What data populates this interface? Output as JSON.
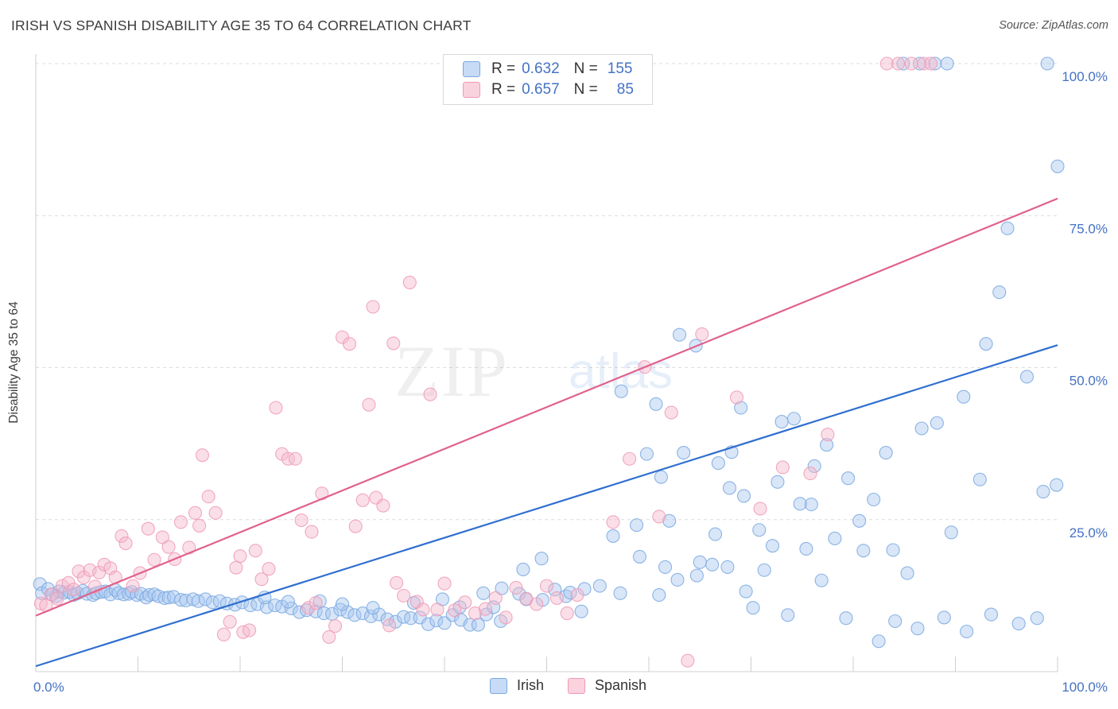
{
  "header": {
    "title": "IRISH VS SPANISH DISABILITY AGE 35 TO 64 CORRELATION CHART",
    "source": "Source: ZipAtlas.com"
  },
  "watermark": {
    "zip": "ZIP",
    "atlas": "atlas"
  },
  "legend_top": {
    "rows": [
      {
        "r_label": "R =",
        "r_value": "0.632",
        "n_label": "N =",
        "n_value": "155",
        "color": "#a8c8f0"
      },
      {
        "r_label": "R =",
        "r_value": "0.657",
        "n_label": "N =",
        "n_value": "85",
        "color": "#f5b8cb"
      }
    ]
  },
  "legend_bottom": {
    "irish": "Irish",
    "spanish": "Spanish"
  },
  "chart_data": {
    "type": "scatter",
    "ylabel": "Disability Age 35 to 64",
    "xlim": [
      0,
      100
    ],
    "ylim": [
      0,
      100
    ],
    "x_tick_labels": [
      "0.0%",
      "100.0%"
    ],
    "y_tick_labels": [
      "100.0%",
      "75.0%",
      "50.0%",
      "25.0%"
    ],
    "y_ticks": [
      100,
      75,
      50,
      25
    ],
    "grid": true,
    "colors": {
      "irish": "#7aa8e0",
      "irish_line": "#2f6fd0",
      "spanish": "#f09ab5",
      "spanish_line": "#e0628c",
      "tick_text": "#4472c4"
    },
    "series": [
      {
        "name": "Irish",
        "trend": [
          [
            0,
            0.9
          ],
          [
            100,
            53.7
          ]
        ],
        "points": [
          [
            0.4,
            14.4
          ],
          [
            0.6,
            12.9
          ],
          [
            1.2,
            13.6
          ],
          [
            1.6,
            12.7
          ],
          [
            2.0,
            12.4
          ],
          [
            2.3,
            13.2
          ],
          [
            2.8,
            13.0
          ],
          [
            3.3,
            13.1
          ],
          [
            3.7,
            12.6
          ],
          [
            4.1,
            12.9
          ],
          [
            4.6,
            13.3
          ],
          [
            5.0,
            12.8
          ],
          [
            5.6,
            12.6
          ],
          [
            5.9,
            12.9
          ],
          [
            6.4,
            13.1
          ],
          [
            6.8,
            13.2
          ],
          [
            7.3,
            12.7
          ],
          [
            7.8,
            13.4
          ],
          [
            8.1,
            12.9
          ],
          [
            8.6,
            12.7
          ],
          [
            9.1,
            12.8
          ],
          [
            9.4,
            13.1
          ],
          [
            9.9,
            12.6
          ],
          [
            10.3,
            12.8
          ],
          [
            10.8,
            12.2
          ],
          [
            11.1,
            12.6
          ],
          [
            11.6,
            12.7
          ],
          [
            12.0,
            12.4
          ],
          [
            12.6,
            12.1
          ],
          [
            13.0,
            12.2
          ],
          [
            13.5,
            12.3
          ],
          [
            14.2,
            11.8
          ],
          [
            14.7,
            11.7
          ],
          [
            15.4,
            11.9
          ],
          [
            15.9,
            11.6
          ],
          [
            16.6,
            11.9
          ],
          [
            17.3,
            11.4
          ],
          [
            18.0,
            11.6
          ],
          [
            18.7,
            11.2
          ],
          [
            19.5,
            11.0
          ],
          [
            20.2,
            11.4
          ],
          [
            21.0,
            10.9
          ],
          [
            21.7,
            11.1
          ],
          [
            22.6,
            10.6
          ],
          [
            23.4,
            10.9
          ],
          [
            24.1,
            10.7
          ],
          [
            25.0,
            10.4
          ],
          [
            25.8,
            9.8
          ],
          [
            26.5,
            10.1
          ],
          [
            27.4,
            9.9
          ],
          [
            28.2,
            9.6
          ],
          [
            29.0,
            9.5
          ],
          [
            29.8,
            10.2
          ],
          [
            30.5,
            9.8
          ],
          [
            31.2,
            9.3
          ],
          [
            32.0,
            9.6
          ],
          [
            32.8,
            9.1
          ],
          [
            33.6,
            9.4
          ],
          [
            34.4,
            8.6
          ],
          [
            35.2,
            8.2
          ],
          [
            36.0,
            9.0
          ],
          [
            36.7,
            8.8
          ],
          [
            37.6,
            8.9
          ],
          [
            38.4,
            7.8
          ],
          [
            39.2,
            8.4
          ],
          [
            40.0,
            8.0
          ],
          [
            40.8,
            9.3
          ],
          [
            41.6,
            8.5
          ],
          [
            42.5,
            7.7
          ],
          [
            43.3,
            7.7
          ],
          [
            44.1,
            9.4
          ],
          [
            44.8,
            10.6
          ],
          [
            45.5,
            8.3
          ],
          [
            22.4,
            12.2
          ],
          [
            24.7,
            11.5
          ],
          [
            27.8,
            11.6
          ],
          [
            30.0,
            11.1
          ],
          [
            33.0,
            10.5
          ],
          [
            37.0,
            11.3
          ],
          [
            39.8,
            11.9
          ],
          [
            41.5,
            10.6
          ],
          [
            43.8,
            12.9
          ],
          [
            45.6,
            13.7
          ],
          [
            47.3,
            12.8
          ],
          [
            48.0,
            11.9
          ],
          [
            49.6,
            11.8
          ],
          [
            51.9,
            12.4
          ],
          [
            53.7,
            13.6
          ],
          [
            55.2,
            14.1
          ],
          [
            57.2,
            12.9
          ],
          [
            59.1,
            18.9
          ],
          [
            61.0,
            12.6
          ],
          [
            62.8,
            15.1
          ],
          [
            64.7,
            15.8
          ],
          [
            66.2,
            17.6
          ],
          [
            67.7,
            17.2
          ],
          [
            69.5,
            13.2
          ],
          [
            70.2,
            10.5
          ],
          [
            72.1,
            20.7
          ],
          [
            73.6,
            9.3
          ],
          [
            75.4,
            20.2
          ],
          [
            76.9,
            15.0
          ],
          [
            79.3,
            8.8
          ],
          [
            81.0,
            19.9
          ],
          [
            82.5,
            5.0
          ],
          [
            84.1,
            8.3
          ],
          [
            86.3,
            7.1
          ],
          [
            88.9,
            8.9
          ],
          [
            91.1,
            6.6
          ],
          [
            93.5,
            9.4
          ],
          [
            96.2,
            7.9
          ],
          [
            98.0,
            8.8
          ],
          [
            47.7,
            16.8
          ],
          [
            49.5,
            18.6
          ],
          [
            50.8,
            13.5
          ],
          [
            52.3,
            13.0
          ],
          [
            53.4,
            9.9
          ],
          [
            56.5,
            22.3
          ],
          [
            58.8,
            24.1
          ],
          [
            61.2,
            32.0
          ],
          [
            62.0,
            24.8
          ],
          [
            63.4,
            36.0
          ],
          [
            65.0,
            18.0
          ],
          [
            66.5,
            22.6
          ],
          [
            68.1,
            36.1
          ],
          [
            69.0,
            43.4
          ],
          [
            70.8,
            23.3
          ],
          [
            72.6,
            31.2
          ],
          [
            74.2,
            41.6
          ],
          [
            75.9,
            27.5
          ],
          [
            77.4,
            37.3
          ],
          [
            78.2,
            21.9
          ],
          [
            80.6,
            24.8
          ],
          [
            82.0,
            28.3
          ],
          [
            83.9,
            20.0
          ],
          [
            85.3,
            16.2
          ],
          [
            86.7,
            40.0
          ],
          [
            88.2,
            40.9
          ],
          [
            89.6,
            22.9
          ],
          [
            90.8,
            45.2
          ],
          [
            92.4,
            31.6
          ],
          [
            93.0,
            53.9
          ],
          [
            94.3,
            62.4
          ],
          [
            95.1,
            72.9
          ],
          [
            97.0,
            48.5
          ],
          [
            98.6,
            29.6
          ],
          [
            99.9,
            30.7
          ],
          [
            57.3,
            46.1
          ],
          [
            59.8,
            35.8
          ],
          [
            60.7,
            44.0
          ],
          [
            61.6,
            17.2
          ],
          [
            63.0,
            55.4
          ],
          [
            64.6,
            53.6
          ],
          [
            66.8,
            34.3
          ],
          [
            67.9,
            30.2
          ],
          [
            69.3,
            28.9
          ],
          [
            71.3,
            16.7
          ],
          [
            73.0,
            41.1
          ],
          [
            74.8,
            27.6
          ],
          [
            76.2,
            33.8
          ],
          [
            79.5,
            31.8
          ],
          [
            83.2,
            36.0
          ],
          [
            84.9,
            100
          ],
          [
            86.5,
            100
          ],
          [
            88.0,
            100
          ],
          [
            89.2,
            100
          ],
          [
            99.0,
            100
          ],
          [
            100.0,
            83.1
          ]
        ]
      },
      {
        "name": "Spanish",
        "trend": [
          [
            0,
            9.2
          ],
          [
            100,
            77.8
          ]
        ],
        "points": [
          [
            0.5,
            11.2
          ],
          [
            1.0,
            10.9
          ],
          [
            1.5,
            12.7
          ],
          [
            2.1,
            12.0
          ],
          [
            2.6,
            14.1
          ],
          [
            3.2,
            14.6
          ],
          [
            3.7,
            13.5
          ],
          [
            4.2,
            16.5
          ],
          [
            4.7,
            15.5
          ],
          [
            5.3,
            16.7
          ],
          [
            5.8,
            14.0
          ],
          [
            6.2,
            16.3
          ],
          [
            6.7,
            17.6
          ],
          [
            7.3,
            17.0
          ],
          [
            7.8,
            15.5
          ],
          [
            8.4,
            22.3
          ],
          [
            8.8,
            21.1
          ],
          [
            9.5,
            14.1
          ],
          [
            10.2,
            16.2
          ],
          [
            11.0,
            23.5
          ],
          [
            11.6,
            18.4
          ],
          [
            12.4,
            22.1
          ],
          [
            13.0,
            20.5
          ],
          [
            13.6,
            18.5
          ],
          [
            14.2,
            24.6
          ],
          [
            15.0,
            20.4
          ],
          [
            15.6,
            26.1
          ],
          [
            16.3,
            35.6
          ],
          [
            16.9,
            28.8
          ],
          [
            17.6,
            26.1
          ],
          [
            18.4,
            6.1
          ],
          [
            19.0,
            8.2
          ],
          [
            19.6,
            17.1
          ],
          [
            20.3,
            6.5
          ],
          [
            20.9,
            6.8
          ],
          [
            21.5,
            19.9
          ],
          [
            22.1,
            15.2
          ],
          [
            22.8,
            16.9
          ],
          [
            23.5,
            43.4
          ],
          [
            24.1,
            35.8
          ],
          [
            24.7,
            35.0
          ],
          [
            25.4,
            35.0
          ],
          [
            26.0,
            24.9
          ],
          [
            26.7,
            10.5
          ],
          [
            27.4,
            11.3
          ],
          [
            28.0,
            29.3
          ],
          [
            28.7,
            5.7
          ],
          [
            29.3,
            7.5
          ],
          [
            30.0,
            55.0
          ],
          [
            30.7,
            53.9
          ],
          [
            31.3,
            23.9
          ],
          [
            32.0,
            28.2
          ],
          [
            32.6,
            43.9
          ],
          [
            33.3,
            28.6
          ],
          [
            34.0,
            27.3
          ],
          [
            34.6,
            7.6
          ],
          [
            35.3,
            14.6
          ],
          [
            36.0,
            12.5
          ],
          [
            36.6,
            64.0
          ],
          [
            37.3,
            11.5
          ],
          [
            37.9,
            10.2
          ],
          [
            38.6,
            45.6
          ],
          [
            39.3,
            10.2
          ],
          [
            40.0,
            14.5
          ],
          [
            41.0,
            10.1
          ],
          [
            42.0,
            11.4
          ],
          [
            43.0,
            9.6
          ],
          [
            44.0,
            10.3
          ],
          [
            45.0,
            12.1
          ],
          [
            46.0,
            8.9
          ],
          [
            47.0,
            13.8
          ],
          [
            48.0,
            12.0
          ],
          [
            49.0,
            11.1
          ],
          [
            50.0,
            14.1
          ],
          [
            51.0,
            12.1
          ],
          [
            52.0,
            9.6
          ],
          [
            53.0,
            12.6
          ],
          [
            56.5,
            24.6
          ],
          [
            58.1,
            35.0
          ],
          [
            59.6,
            50.1
          ],
          [
            61.0,
            25.5
          ],
          [
            62.2,
            42.6
          ],
          [
            63.8,
            1.8
          ],
          [
            65.2,
            55.5
          ],
          [
            68.6,
            45.1
          ],
          [
            70.9,
            26.8
          ],
          [
            73.1,
            33.6
          ],
          [
            75.8,
            32.6
          ],
          [
            77.5,
            39.0
          ],
          [
            83.3,
            100
          ],
          [
            84.4,
            100
          ],
          [
            85.7,
            100
          ],
          [
            86.9,
            100
          ],
          [
            87.6,
            100
          ],
          [
            35.0,
            54.0
          ],
          [
            16.0,
            24.0
          ],
          [
            20.0,
            19.0
          ],
          [
            27.0,
            23.0
          ],
          [
            53.0,
            100
          ],
          [
            33.0,
            60.0
          ]
        ]
      }
    ]
  }
}
